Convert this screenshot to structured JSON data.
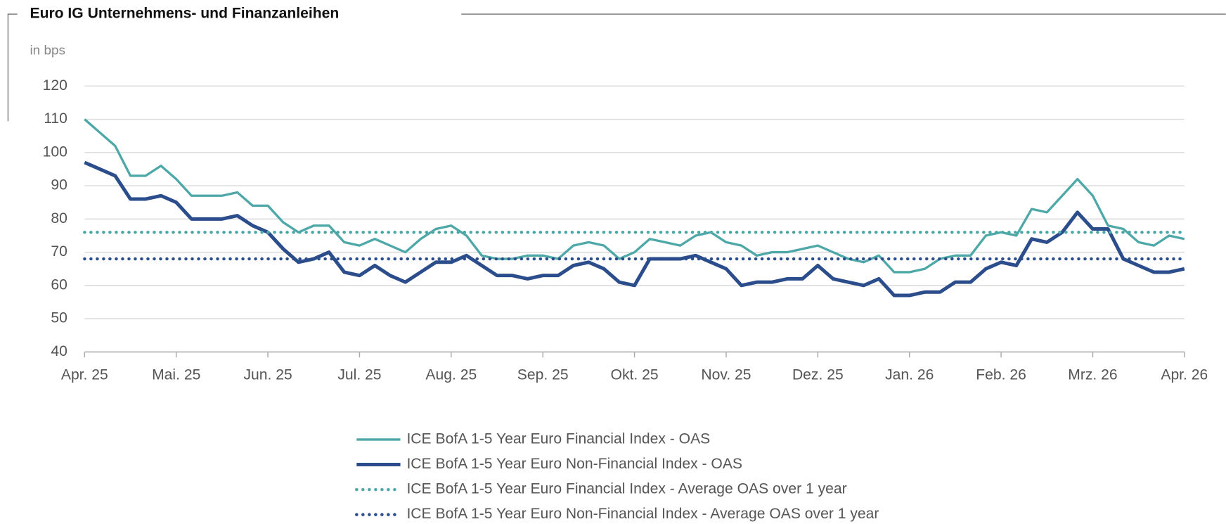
{
  "chart_data": {
    "type": "line",
    "title": "Euro IG Unternehmens- und Finanzanleihen",
    "ylabel": "in bps",
    "ylim": [
      40,
      120
    ],
    "yticks": [
      40,
      50,
      60,
      70,
      80,
      90,
      100,
      110,
      120
    ],
    "xlim": [
      0,
      72
    ],
    "xticks": [
      {
        "value": 0,
        "label": "Apr. 25"
      },
      {
        "value": 6,
        "label": "Mai. 25"
      },
      {
        "value": 12,
        "label": "Jun. 25"
      },
      {
        "value": 18,
        "label": "Jul. 25"
      },
      {
        "value": 24,
        "label": "Aug. 25"
      },
      {
        "value": 30,
        "label": "Sep. 25"
      },
      {
        "value": 36,
        "label": "Okt. 25"
      },
      {
        "value": 42,
        "label": "Nov. 25"
      },
      {
        "value": 48,
        "label": "Dez. 25"
      },
      {
        "value": 54,
        "label": "Jan. 26"
      },
      {
        "value": 60,
        "label": "Feb. 26"
      },
      {
        "value": 66,
        "label": "Mrz. 26"
      },
      {
        "value": 72,
        "label": "Apr. 26"
      }
    ],
    "grid": true,
    "series": [
      {
        "name": "ICE BofA 1-5 Year Euro Financial Index - OAS",
        "color": "#4ea8a8",
        "style": "solid",
        "values": [
          110,
          106,
          102,
          93,
          93,
          96,
          92,
          87,
          87,
          87,
          88,
          84,
          84,
          79,
          76,
          78,
          78,
          73,
          72,
          74,
          72,
          70,
          74,
          77,
          78,
          75,
          69,
          68,
          68,
          69,
          69,
          68,
          72,
          73,
          72,
          68,
          70,
          74,
          73,
          72,
          75,
          76,
          73,
          72,
          69,
          70,
          70,
          71,
          72,
          70,
          68,
          67,
          69,
          64,
          64,
          65,
          68,
          69,
          69,
          75,
          76,
          75,
          83,
          82,
          87,
          92,
          87,
          78,
          77,
          73,
          72,
          75,
          74
        ]
      },
      {
        "name": "ICE BofA 1-5 Year Euro Non-Financial Index - OAS",
        "color": "#2b4d8c",
        "style": "solid-thick",
        "values": [
          97,
          95,
          93,
          86,
          86,
          87,
          85,
          80,
          80,
          80,
          81,
          78,
          76,
          71,
          67,
          68,
          70,
          64,
          63,
          66,
          63,
          61,
          64,
          67,
          67,
          69,
          66,
          63,
          63,
          62,
          63,
          63,
          66,
          67,
          65,
          61,
          60,
          68,
          68,
          68,
          69,
          67,
          65,
          60,
          61,
          61,
          62,
          62,
          66,
          62,
          61,
          60,
          62,
          57,
          57,
          58,
          58,
          61,
          61,
          65,
          67,
          66,
          74,
          73,
          76,
          82,
          77,
          77,
          68,
          66,
          64,
          64,
          65
        ]
      },
      {
        "name": "ICE BofA 1-5 Year Euro Financial Index - Average OAS over 1 year",
        "color": "#4ea8a8",
        "style": "dotted",
        "value": 76
      },
      {
        "name": "ICE BofA 1-5 Year Euro Non-Financial Index - Average OAS over 1 year",
        "color": "#2b4d8c",
        "style": "dotted",
        "value": 68
      }
    ]
  }
}
